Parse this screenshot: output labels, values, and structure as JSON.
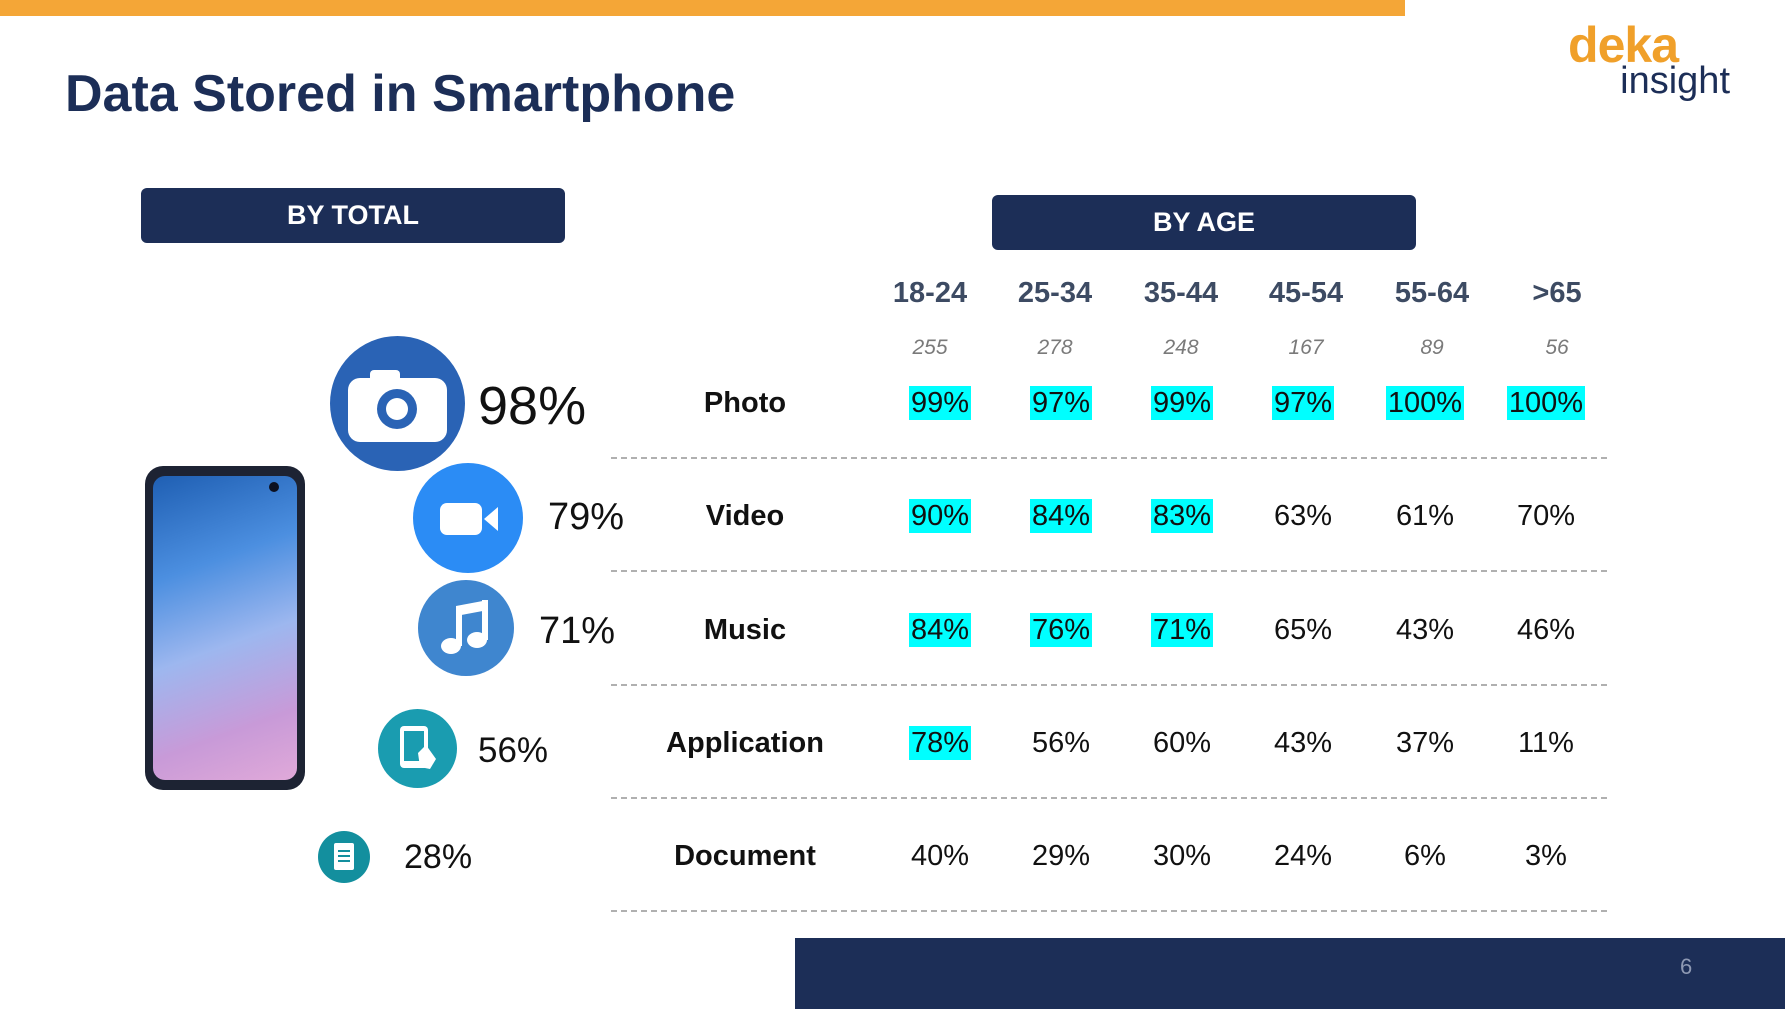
{
  "title": "Data Stored in Smartphone",
  "logo": {
    "line1": "deka",
    "line2": "insight"
  },
  "by_total_label": "BY TOTAL",
  "by_age_label": "BY AGE",
  "age_groups": [
    {
      "label": "18-24",
      "n": "255"
    },
    {
      "label": "25-34",
      "n": "278"
    },
    {
      "label": "35-44",
      "n": "248"
    },
    {
      "label": "45-54",
      "n": "167"
    },
    {
      "label": "55-64",
      "n": "89"
    },
    {
      "label": ">65",
      "n": "56"
    }
  ],
  "rows": [
    {
      "label": "Photo",
      "total": "98%",
      "icon": "camera-icon",
      "values": [
        "99%",
        "97%",
        "99%",
        "97%",
        "100%",
        "100%"
      ],
      "highlight": [
        true,
        true,
        true,
        true,
        true,
        true
      ]
    },
    {
      "label": "Video",
      "total": "79%",
      "icon": "video-camera-icon",
      "values": [
        "90%",
        "84%",
        "83%",
        "63%",
        "61%",
        "70%"
      ],
      "highlight": [
        true,
        true,
        true,
        false,
        false,
        false
      ]
    },
    {
      "label": "Music",
      "total": "71%",
      "icon": "music-note-icon",
      "values": [
        "84%",
        "76%",
        "71%",
        "65%",
        "43%",
        "46%"
      ],
      "highlight": [
        true,
        true,
        true,
        false,
        false,
        false
      ]
    },
    {
      "label": "Application",
      "total": "56%",
      "icon": "tablet-touch-icon",
      "values": [
        "78%",
        "56%",
        "60%",
        "43%",
        "37%",
        "11%"
      ],
      "highlight": [
        true,
        false,
        false,
        false,
        false,
        false
      ]
    },
    {
      "label": "Document",
      "total": "28%",
      "icon": "document-icon",
      "values": [
        "40%",
        "29%",
        "30%",
        "24%",
        "6%",
        "3%"
      ],
      "highlight": [
        false,
        false,
        false,
        false,
        false,
        false
      ]
    }
  ],
  "colors": {
    "navy": "#1c2e57",
    "orange": "#f4a637",
    "highlight": "#00ffff"
  },
  "page_number": "6"
}
